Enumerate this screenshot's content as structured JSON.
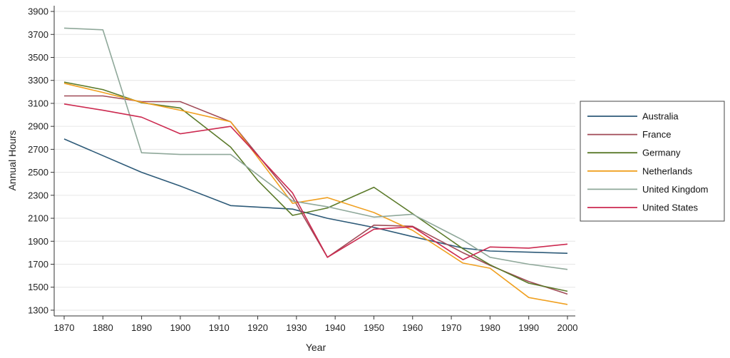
{
  "chart_data": {
    "type": "line",
    "title": "",
    "xlabel": "Year",
    "ylabel": "Annual Hours",
    "xlim": [
      1870,
      2000
    ],
    "ylim": [
      1250,
      3950
    ],
    "x_ticks": [
      1870,
      1880,
      1890,
      1900,
      1910,
      1920,
      1930,
      1940,
      1950,
      1960,
      1970,
      1980,
      1990,
      2000
    ],
    "y_ticks": [
      1300,
      1500,
      1700,
      1900,
      2100,
      2300,
      2500,
      2700,
      2900,
      3100,
      3300,
      3500,
      3700,
      3900
    ],
    "grid": "horizontal",
    "legend_position": "right",
    "series": [
      {
        "name": "Australia",
        "color": "#2d5a78",
        "points": [
          [
            1870,
            2790
          ],
          [
            1890,
            2500
          ],
          [
            1900,
            2380
          ],
          [
            1913,
            2210
          ],
          [
            1929,
            2180
          ],
          [
            1938,
            2100
          ],
          [
            1950,
            2020
          ],
          [
            1960,
            1940
          ],
          [
            1973,
            1840
          ],
          [
            1980,
            1815
          ],
          [
            1990,
            1805
          ],
          [
            2000,
            1795
          ]
        ]
      },
      {
        "name": "France",
        "color": "#a04a57",
        "points": [
          [
            1870,
            3165
          ],
          [
            1880,
            3165
          ],
          [
            1890,
            3115
          ],
          [
            1900,
            3115
          ],
          [
            1913,
            2940
          ],
          [
            1929,
            2280
          ],
          [
            1938,
            1760
          ],
          [
            1950,
            2040
          ],
          [
            1960,
            2030
          ],
          [
            1973,
            1800
          ],
          [
            1980,
            1690
          ],
          [
            1990,
            1550
          ],
          [
            2000,
            1440
          ]
        ]
      },
      {
        "name": "Germany",
        "color": "#5b7a2a",
        "points": [
          [
            1870,
            3285
          ],
          [
            1880,
            3220
          ],
          [
            1890,
            3105
          ],
          [
            1900,
            3060
          ],
          [
            1913,
            2720
          ],
          [
            1920,
            2430
          ],
          [
            1929,
            2125
          ],
          [
            1938,
            2190
          ],
          [
            1950,
            2370
          ],
          [
            1960,
            2140
          ],
          [
            1973,
            1835
          ],
          [
            1980,
            1695
          ],
          [
            1990,
            1535
          ],
          [
            2000,
            1465
          ]
        ]
      },
      {
        "name": "Netherlands",
        "color": "#f0a020",
        "points": [
          [
            1870,
            3275
          ],
          [
            1880,
            3195
          ],
          [
            1890,
            3110
          ],
          [
            1900,
            3040
          ],
          [
            1913,
            2940
          ],
          [
            1929,
            2230
          ],
          [
            1938,
            2280
          ],
          [
            1950,
            2150
          ],
          [
            1960,
            1995
          ],
          [
            1973,
            1710
          ],
          [
            1980,
            1665
          ],
          [
            1990,
            1410
          ],
          [
            2000,
            1350
          ]
        ]
      },
      {
        "name": "United Kingdom",
        "color": "#8fa89a",
        "points": [
          [
            1870,
            3755
          ],
          [
            1880,
            3740
          ],
          [
            1890,
            2670
          ],
          [
            1900,
            2655
          ],
          [
            1913,
            2655
          ],
          [
            1929,
            2250
          ],
          [
            1938,
            2200
          ],
          [
            1950,
            2110
          ],
          [
            1960,
            2135
          ],
          [
            1973,
            1910
          ],
          [
            1980,
            1760
          ],
          [
            1990,
            1700
          ],
          [
            2000,
            1655
          ]
        ]
      },
      {
        "name": "United States",
        "color": "#cc2a50",
        "points": [
          [
            1870,
            3095
          ],
          [
            1880,
            3040
          ],
          [
            1890,
            2980
          ],
          [
            1900,
            2835
          ],
          [
            1913,
            2900
          ],
          [
            1929,
            2320
          ],
          [
            1938,
            1760
          ],
          [
            1950,
            2005
          ],
          [
            1960,
            2025
          ],
          [
            1973,
            1740
          ],
          [
            1980,
            1850
          ],
          [
            1990,
            1840
          ],
          [
            2000,
            1875
          ]
        ]
      }
    ]
  }
}
